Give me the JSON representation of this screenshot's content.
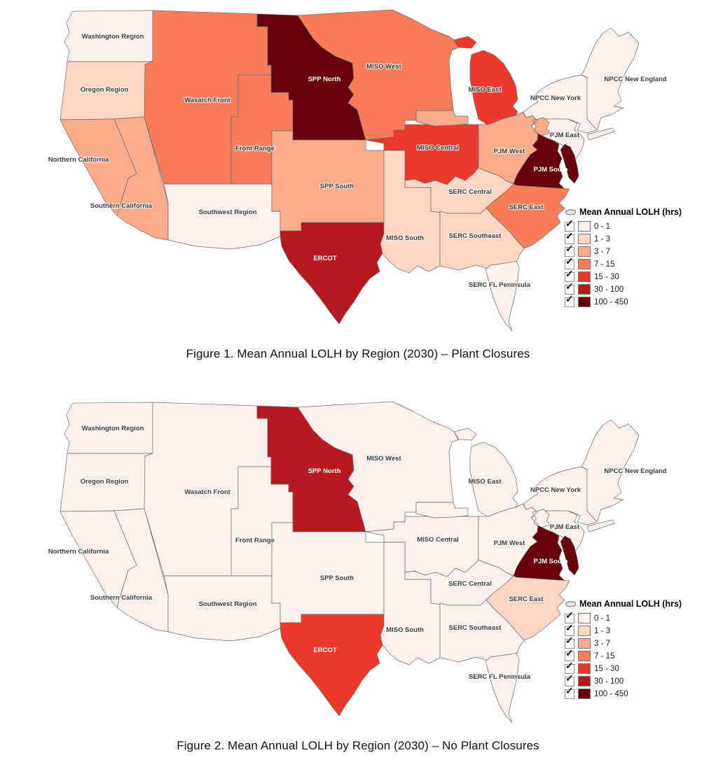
{
  "legend": {
    "title": "Mean Annual LOLH (hrs)",
    "check_glyph": "✓",
    "items": [
      {
        "range": "0 - 1",
        "color": "#fdf0ec",
        "checked": true
      },
      {
        "range": "1 - 3",
        "color": "#fdd6c3",
        "checked": true
      },
      {
        "range": "3 - 7",
        "color": "#fcab8d",
        "checked": true
      },
      {
        "range": "7 - 15",
        "color": "#fa7d5a",
        "checked": true
      },
      {
        "range": "15 - 30",
        "color": "#ec392b",
        "checked": true
      },
      {
        "range": "30 - 100",
        "color": "#b8191e",
        "checked": true
      },
      {
        "range": "100 - 450",
        "color": "#67000d",
        "checked": true
      }
    ]
  },
  "figures": [
    {
      "caption": "Figure 1. Mean Annual LOLH by Region (2030) – Plant Closures"
    },
    {
      "caption": "Figure 2. Mean Annual LOLH by Region (2030) – No Plant Closures"
    }
  ],
  "map_style": {
    "border_color": "#6b6b6b",
    "label_color": "#3d3d3d",
    "label_light_color": "#ffffff"
  },
  "regions": [
    {
      "id": "washington",
      "name": "Washington Region",
      "fig1": "0 - 1",
      "fig2": "0 - 1",
      "white1": false,
      "white2": false
    },
    {
      "id": "oregon",
      "name": "Oregon Region",
      "fig1": "1 - 3",
      "fig2": "0 - 1",
      "white1": false,
      "white2": false
    },
    {
      "id": "n_california",
      "name": "Northern California",
      "fig1": "3 - 7",
      "fig2": "0 - 1",
      "white1": false,
      "white2": false
    },
    {
      "id": "s_california",
      "name": "Southern California",
      "fig1": "3 - 7",
      "fig2": "0 - 1",
      "white1": false,
      "white2": false
    },
    {
      "id": "wasatch",
      "name": "Wasatch Front",
      "fig1": "7 - 15",
      "fig2": "0 - 1",
      "white1": false,
      "white2": false
    },
    {
      "id": "front_range",
      "name": "Front Range",
      "fig1": "7 - 15",
      "fig2": "0 - 1",
      "white1": false,
      "white2": false
    },
    {
      "id": "southwest",
      "name": "Southwest Region",
      "fig1": "0 - 1",
      "fig2": "0 - 1",
      "white1": false,
      "white2": false
    },
    {
      "id": "spp_north",
      "name": "SPP North",
      "fig1": "100 - 450",
      "fig2": "30 - 100",
      "white1": true,
      "white2": true
    },
    {
      "id": "spp_south",
      "name": "SPP South",
      "fig1": "3 - 7",
      "fig2": "0 - 1",
      "white1": false,
      "white2": false
    },
    {
      "id": "ercot",
      "name": "ERCOT",
      "fig1": "30 - 100",
      "fig2": "15 - 30",
      "white1": true,
      "white2": true
    },
    {
      "id": "miso_west",
      "name": "MISO West",
      "fig1": "7 - 15",
      "fig2": "0 - 1",
      "white1": false,
      "white2": false
    },
    {
      "id": "miso_east",
      "name": "MISO East",
      "fig1": "15 - 30",
      "fig2": "0 - 1",
      "white1": false,
      "white2": false
    },
    {
      "id": "miso_central",
      "name": "MISO Central",
      "fig1": "15 - 30",
      "fig2": "0 - 1",
      "white1": false,
      "white2": false
    },
    {
      "id": "miso_south",
      "name": "MISO South",
      "fig1": "1 - 3",
      "fig2": "0 - 1",
      "white1": false,
      "white2": false
    },
    {
      "id": "npcc_ny",
      "name": "NPCC New York",
      "fig1": "0 - 1",
      "fig2": "0 - 1",
      "white1": false,
      "white2": false
    },
    {
      "id": "npcc_ne",
      "name": "NPCC New England",
      "fig1": "0 - 1",
      "fig2": "0 - 1",
      "white1": false,
      "white2": false
    },
    {
      "id": "pjm_east",
      "name": "PJM East",
      "fig1": "0 - 1",
      "fig2": "0 - 1",
      "white1": false,
      "white2": false
    },
    {
      "id": "pjm_west",
      "name": "PJM West",
      "fig1": "3 - 7",
      "fig2": "0 - 1",
      "white1": false,
      "white2": false
    },
    {
      "id": "pjm_south",
      "name": "PJM South",
      "fig1": "100 - 450",
      "fig2": "100 - 450",
      "white1": true,
      "white2": true
    },
    {
      "id": "serc_central",
      "name": "SERC Central",
      "fig1": "1 - 3",
      "fig2": "0 - 1",
      "white1": false,
      "white2": false
    },
    {
      "id": "serc_east",
      "name": "SERC East",
      "fig1": "7 - 15",
      "fig2": "1 - 3",
      "white1": false,
      "white2": false
    },
    {
      "id": "serc_southeast",
      "name": "SERC Southeast",
      "fig1": "1 - 3",
      "fig2": "0 - 1",
      "white1": false,
      "white2": false
    },
    {
      "id": "serc_fl",
      "name": "SERC FL Peninsula",
      "fig1": "0 - 1",
      "fig2": "0 - 1",
      "white1": false,
      "white2": false
    }
  ]
}
